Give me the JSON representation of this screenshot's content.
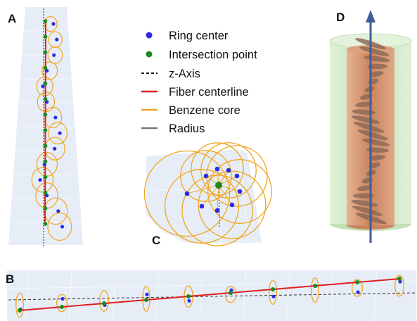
{
  "panels": {
    "a": "A",
    "b": "B",
    "c": "C",
    "d": "D"
  },
  "legend": {
    "items": [
      {
        "label": "Ring center",
        "symbol": "dot",
        "color": "#2a2ae0"
      },
      {
        "label": "Intersection point",
        "symbol": "dot",
        "color": "#1e8a1e"
      },
      {
        "label": "z-Axis",
        "symbol": "dashed-line",
        "color": "#111111"
      },
      {
        "label": "Fiber centerline",
        "symbol": "line",
        "color": "#e02020"
      },
      {
        "label": "Benzene core",
        "symbol": "line",
        "color": "#f2a620"
      },
      {
        "label": "Radius",
        "symbol": "line",
        "color": "#777777"
      }
    ]
  },
  "colors": {
    "ring_center": "#2a2ae0",
    "intersection": "#1e8a1e",
    "centerline": "#e02020",
    "benzene": "#f2a620",
    "radius": "#777777",
    "pane": "#e6edf7",
    "axis_arrow": "#3d5f99",
    "outer_cylinder": "#cfe8c4",
    "inner_cylinder": "#d9946a"
  }
}
